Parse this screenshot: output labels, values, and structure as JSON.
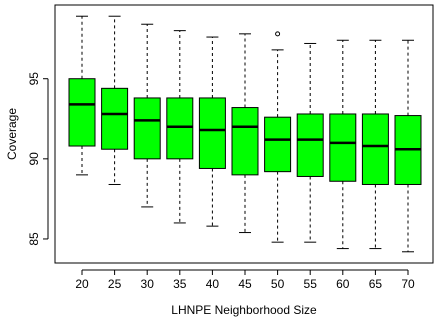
{
  "chart_data": {
    "type": "box",
    "xlabel": "LHNPE Neighborhood Size",
    "ylabel": "Coverage",
    "box_color": "#00ff00",
    "ylim": [
      83.5,
      99.6
    ],
    "yticks": [
      85,
      90,
      95
    ],
    "categories": [
      "20",
      "25",
      "30",
      "35",
      "40",
      "45",
      "50",
      "55",
      "60",
      "65",
      "70"
    ],
    "boxes": [
      {
        "whisker_low": 89.0,
        "q1": 90.8,
        "median": 93.4,
        "q3": 95.0,
        "whisker_high": 98.9,
        "outliers": []
      },
      {
        "whisker_low": 88.4,
        "q1": 90.6,
        "median": 92.8,
        "q3": 94.4,
        "whisker_high": 98.9,
        "outliers": []
      },
      {
        "whisker_low": 87.0,
        "q1": 90.0,
        "median": 92.4,
        "q3": 93.8,
        "whisker_high": 98.4,
        "outliers": []
      },
      {
        "whisker_low": 86.0,
        "q1": 90.0,
        "median": 92.0,
        "q3": 93.8,
        "whisker_high": 98.0,
        "outliers": []
      },
      {
        "whisker_low": 85.8,
        "q1": 89.4,
        "median": 91.8,
        "q3": 93.8,
        "whisker_high": 97.6,
        "outliers": []
      },
      {
        "whisker_low": 85.4,
        "q1": 89.0,
        "median": 92.0,
        "q3": 93.2,
        "whisker_high": 97.8,
        "outliers": []
      },
      {
        "whisker_low": 84.8,
        "q1": 89.2,
        "median": 91.2,
        "q3": 92.6,
        "whisker_high": 96.8,
        "outliers": [
          97.8
        ]
      },
      {
        "whisker_low": 84.8,
        "q1": 88.9,
        "median": 91.2,
        "q3": 92.8,
        "whisker_high": 97.2,
        "outliers": []
      },
      {
        "whisker_low": 84.4,
        "q1": 88.6,
        "median": 91.0,
        "q3": 92.8,
        "whisker_high": 97.4,
        "outliers": []
      },
      {
        "whisker_low": 84.4,
        "q1": 88.4,
        "median": 90.8,
        "q3": 92.8,
        "whisker_high": 97.4,
        "outliers": []
      },
      {
        "whisker_low": 84.2,
        "q1": 88.4,
        "median": 90.6,
        "q3": 92.7,
        "whisker_high": 97.4,
        "outliers": []
      }
    ]
  }
}
